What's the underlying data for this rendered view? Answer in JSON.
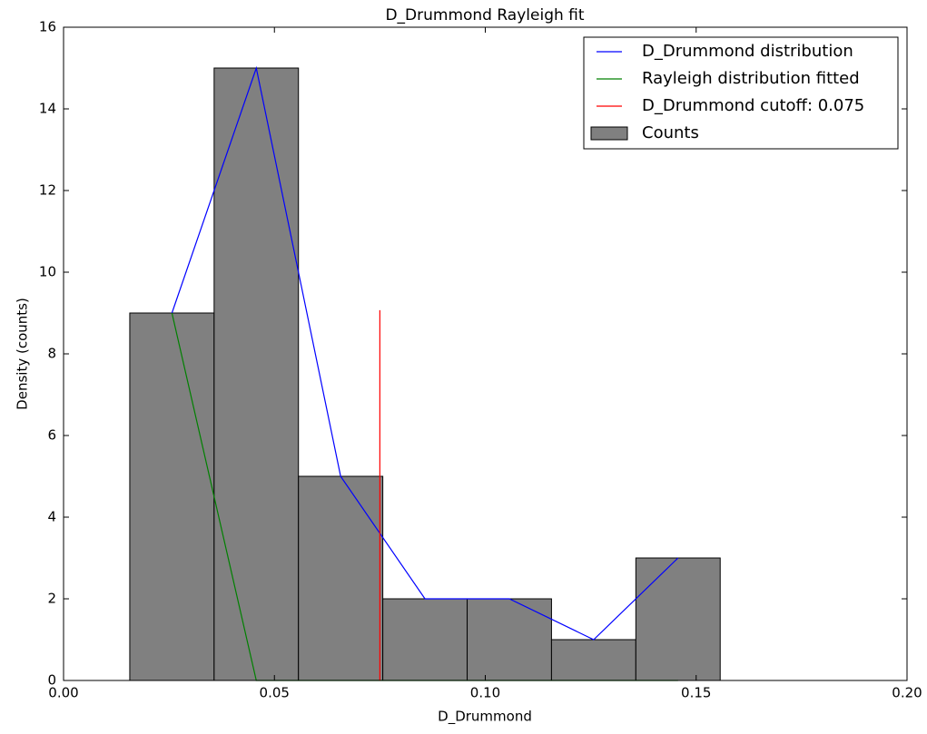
{
  "chart_data": {
    "type": "histogram",
    "title": "D_Drummond Rayleigh fit",
    "x_label": "D_Drummond",
    "y_label": "Density (counts)",
    "bins": [
      0.0157,
      0.0357,
      0.0557,
      0.0757,
      0.0957,
      0.1157,
      0.1357,
      0.1557
    ],
    "counts": [
      9,
      15,
      5,
      2,
      2,
      1,
      3
    ],
    "hist_name": "Counts",
    "hist_color": "#808080",
    "lines": [
      {
        "name": "D_Drummond distribution",
        "color": "#0000ff",
        "x": [
          0.0257,
          0.0457,
          0.0657,
          0.0857,
          0.1057,
          0.1257,
          0.1457
        ],
        "values": [
          9,
          15,
          5,
          2,
          2,
          1,
          3
        ]
      },
      {
        "name": "Rayleigh distribution fitted",
        "color": "#008000",
        "x": [
          0.0257,
          0.0457,
          0.0657,
          0.0857,
          0.1057,
          0.1257,
          0.1457
        ],
        "values": [
          9,
          0,
          0,
          0,
          0,
          0,
          0
        ]
      }
    ],
    "vline": {
      "name": "D_Drummond cutoff: 0.075",
      "color": "#ff0000",
      "x": 0.075,
      "top": 9.07
    },
    "xlim": [
      0,
      0.2
    ],
    "ylim": [
      0,
      16
    ],
    "xticks": [
      {
        "value": 0,
        "label": "0.00"
      },
      {
        "value": 0.05,
        "label": "0.05"
      },
      {
        "value": 0.1,
        "label": "0.10"
      },
      {
        "value": 0.15,
        "label": "0.15"
      },
      {
        "value": 0.2,
        "label": "0.20"
      }
    ],
    "yticks": [
      0,
      2,
      4,
      6,
      8,
      10,
      12,
      14,
      16
    ],
    "legend": "upper right"
  }
}
